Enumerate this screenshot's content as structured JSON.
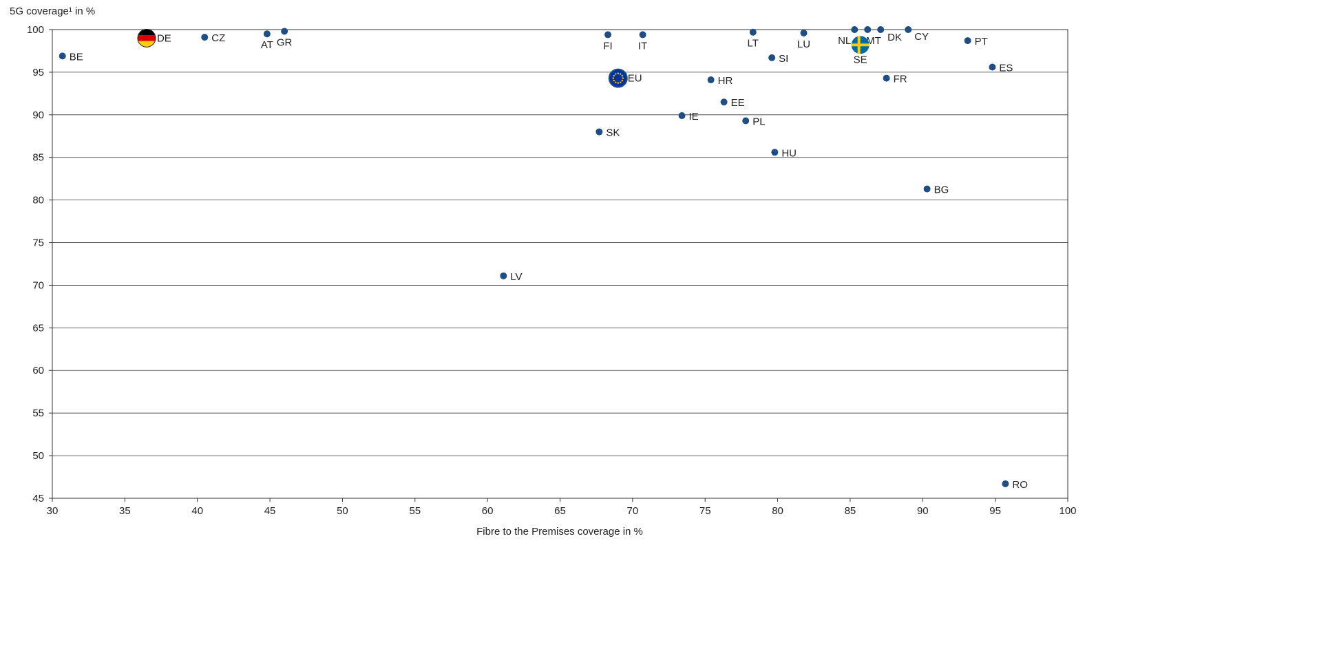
{
  "chart_data": {
    "type": "scatter",
    "y_label": "5G coverage¹ in %",
    "x_label": "Fibre to the Premises coverage in %",
    "point_labels": [
      "BE",
      "DE",
      "CZ",
      "AT",
      "GR",
      "FI",
      "IT",
      "EU",
      "LV",
      "SK",
      "IE",
      "HR",
      "EE",
      "PL",
      "HU",
      "LT",
      "SI",
      "LU",
      "NL",
      "MT",
      "DK",
      "CY",
      "SE",
      "FR",
      "BG",
      "PT",
      "ES",
      "RO"
    ],
    "x": [
      30.7,
      36.5,
      40.5,
      44.8,
      46.0,
      68.3,
      70.7,
      69.0,
      61.1,
      67.7,
      73.4,
      75.4,
      76.3,
      77.8,
      79.8,
      78.3,
      79.6,
      81.8,
      85.3,
      86.2,
      87.1,
      89.0,
      85.7,
      87.5,
      90.3,
      93.1,
      94.8,
      95.7
    ],
    "series": [
      {
        "color": "#1f4e85",
        "values": [
          96.9,
          99.0,
          99.1,
          99.5,
          99.8,
          99.4,
          99.4,
          94.3,
          71.1,
          88.0,
          89.9,
          94.1,
          91.5,
          89.3,
          85.6,
          99.7,
          96.7,
          99.6,
          100,
          100,
          100,
          100,
          98.2,
          94.3,
          81.3,
          98.7,
          95.6,
          46.7
        ]
      }
    ],
    "xlim": [
      30,
      100
    ],
    "xticks": [
      30,
      35,
      40,
      45,
      50,
      55,
      60,
      65,
      70,
      75,
      80,
      85,
      90,
      95,
      100
    ],
    "ylim": [
      45,
      100
    ],
    "yticks": [
      45,
      50,
      55,
      60,
      65,
      70,
      75,
      80,
      85,
      90,
      95,
      100
    ],
    "grid": true
  }
}
